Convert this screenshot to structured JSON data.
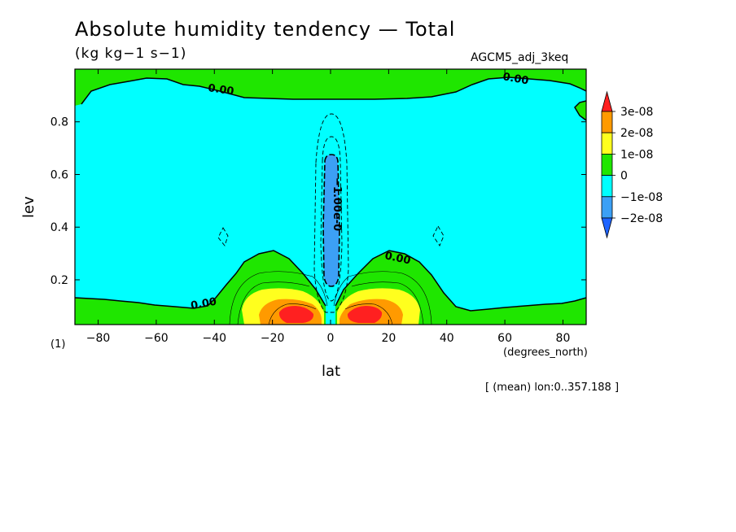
{
  "chart_data": {
    "type": "contour",
    "title": "Absolute humidity tendency — Total",
    "units": "(kg kg−1 s−1)",
    "run_label": "AGCM5_adj_3keq",
    "panel_label": "(1)",
    "xlabel": "lat",
    "x_units": "(degrees_north)",
    "ylabel": "lev",
    "xlim": [
      -88,
      88
    ],
    "ylim": [
      1.0,
      0.03
    ],
    "x_ticks": [
      -80,
      -60,
      -40,
      -20,
      0,
      20,
      40,
      60,
      80
    ],
    "y_ticks": [
      0.2,
      0.4,
      0.6,
      0.8
    ],
    "levels": [
      "3e-08",
      "2e-08",
      "1e-08",
      "0",
      "−1e-08",
      "−2e-08"
    ],
    "level_colors": [
      "#ff2020",
      "#ff9a00",
      "#ffff1e",
      "#1fe600",
      "#00ffff",
      "#3ca0f5",
      "#1e64ff"
    ],
    "contour_labels": [
      "0.00",
      "0.00",
      "0.00",
      "0.00",
      "−1.00e-0"
    ],
    "footnote": "[ (mean) lon:0..357.188 ]"
  }
}
